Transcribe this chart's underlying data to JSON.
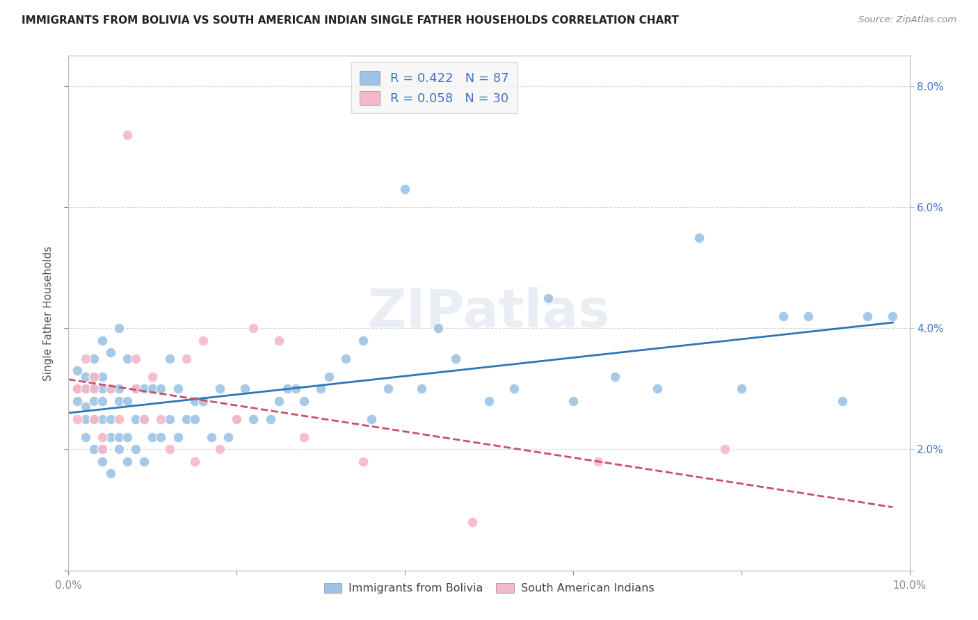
{
  "title": "IMMIGRANTS FROM BOLIVIA VS SOUTH AMERICAN INDIAN SINGLE FATHER HOUSEHOLDS CORRELATION CHART",
  "source": "Source: ZipAtlas.com",
  "ylabel": "Single Father Households",
  "xlim": [
    0.0,
    0.1
  ],
  "ylim": [
    0.0,
    0.085
  ],
  "xticks": [
    0.0,
    0.02,
    0.04,
    0.06,
    0.08,
    0.1
  ],
  "yticks": [
    0.0,
    0.02,
    0.04,
    0.06,
    0.08
  ],
  "ytick_labels_right": [
    "",
    "2.0%",
    "4.0%",
    "6.0%",
    "8.0%"
  ],
  "xtick_labels": [
    "0.0%",
    "",
    "",
    "",
    "",
    "10.0%"
  ],
  "R_blue": 0.422,
  "N_blue": 87,
  "R_pink": 0.058,
  "N_pink": 30,
  "blue_color": "#9dc3e6",
  "pink_color": "#f4b8c8",
  "blue_line_color": "#2e75b6",
  "pink_line_color": "#c9506a",
  "legend_text_color": "#4472c4",
  "right_ytick_color": "#4472c4",
  "watermark_text": "ZIPatlas",
  "bg_color": "#ffffff",
  "grid_color": "#d9d9d9",
  "axis_color": "#bfbfbf",
  "blue_scatter_x": [
    0.001,
    0.001,
    0.001,
    0.002,
    0.002,
    0.002,
    0.002,
    0.002,
    0.003,
    0.003,
    0.003,
    0.003,
    0.003,
    0.003,
    0.004,
    0.004,
    0.004,
    0.004,
    0.004,
    0.004,
    0.004,
    0.005,
    0.005,
    0.005,
    0.005,
    0.005,
    0.006,
    0.006,
    0.006,
    0.006,
    0.006,
    0.007,
    0.007,
    0.007,
    0.007,
    0.008,
    0.008,
    0.008,
    0.009,
    0.009,
    0.009,
    0.01,
    0.01,
    0.011,
    0.011,
    0.012,
    0.012,
    0.013,
    0.013,
    0.014,
    0.015,
    0.015,
    0.016,
    0.017,
    0.018,
    0.019,
    0.02,
    0.021,
    0.022,
    0.024,
    0.025,
    0.026,
    0.027,
    0.028,
    0.03,
    0.031,
    0.033,
    0.035,
    0.036,
    0.038,
    0.04,
    0.042,
    0.044,
    0.046,
    0.05,
    0.053,
    0.057,
    0.06,
    0.065,
    0.07,
    0.075,
    0.08,
    0.085,
    0.088,
    0.092,
    0.095,
    0.098
  ],
  "blue_scatter_y": [
    0.028,
    0.03,
    0.033,
    0.022,
    0.025,
    0.027,
    0.03,
    0.032,
    0.02,
    0.025,
    0.028,
    0.03,
    0.032,
    0.035,
    0.018,
    0.02,
    0.025,
    0.028,
    0.03,
    0.032,
    0.038,
    0.016,
    0.022,
    0.025,
    0.03,
    0.036,
    0.02,
    0.022,
    0.028,
    0.03,
    0.04,
    0.018,
    0.022,
    0.028,
    0.035,
    0.02,
    0.025,
    0.03,
    0.018,
    0.025,
    0.03,
    0.022,
    0.03,
    0.022,
    0.03,
    0.025,
    0.035,
    0.022,
    0.03,
    0.025,
    0.025,
    0.028,
    0.028,
    0.022,
    0.03,
    0.022,
    0.025,
    0.03,
    0.025,
    0.025,
    0.028,
    0.03,
    0.03,
    0.028,
    0.03,
    0.032,
    0.035,
    0.038,
    0.025,
    0.03,
    0.063,
    0.03,
    0.04,
    0.035,
    0.028,
    0.03,
    0.045,
    0.028,
    0.032,
    0.03,
    0.055,
    0.03,
    0.042,
    0.042,
    0.028,
    0.042,
    0.042
  ],
  "pink_scatter_x": [
    0.001,
    0.001,
    0.002,
    0.002,
    0.003,
    0.003,
    0.003,
    0.004,
    0.004,
    0.005,
    0.006,
    0.007,
    0.008,
    0.008,
    0.009,
    0.01,
    0.011,
    0.012,
    0.014,
    0.015,
    0.016,
    0.018,
    0.02,
    0.022,
    0.025,
    0.028,
    0.035,
    0.048,
    0.063,
    0.078
  ],
  "pink_scatter_y": [
    0.025,
    0.03,
    0.03,
    0.035,
    0.025,
    0.03,
    0.032,
    0.02,
    0.022,
    0.03,
    0.025,
    0.072,
    0.03,
    0.035,
    0.025,
    0.032,
    0.025,
    0.02,
    0.035,
    0.018,
    0.038,
    0.02,
    0.025,
    0.04,
    0.038,
    0.022,
    0.018,
    0.008,
    0.018,
    0.02
  ]
}
